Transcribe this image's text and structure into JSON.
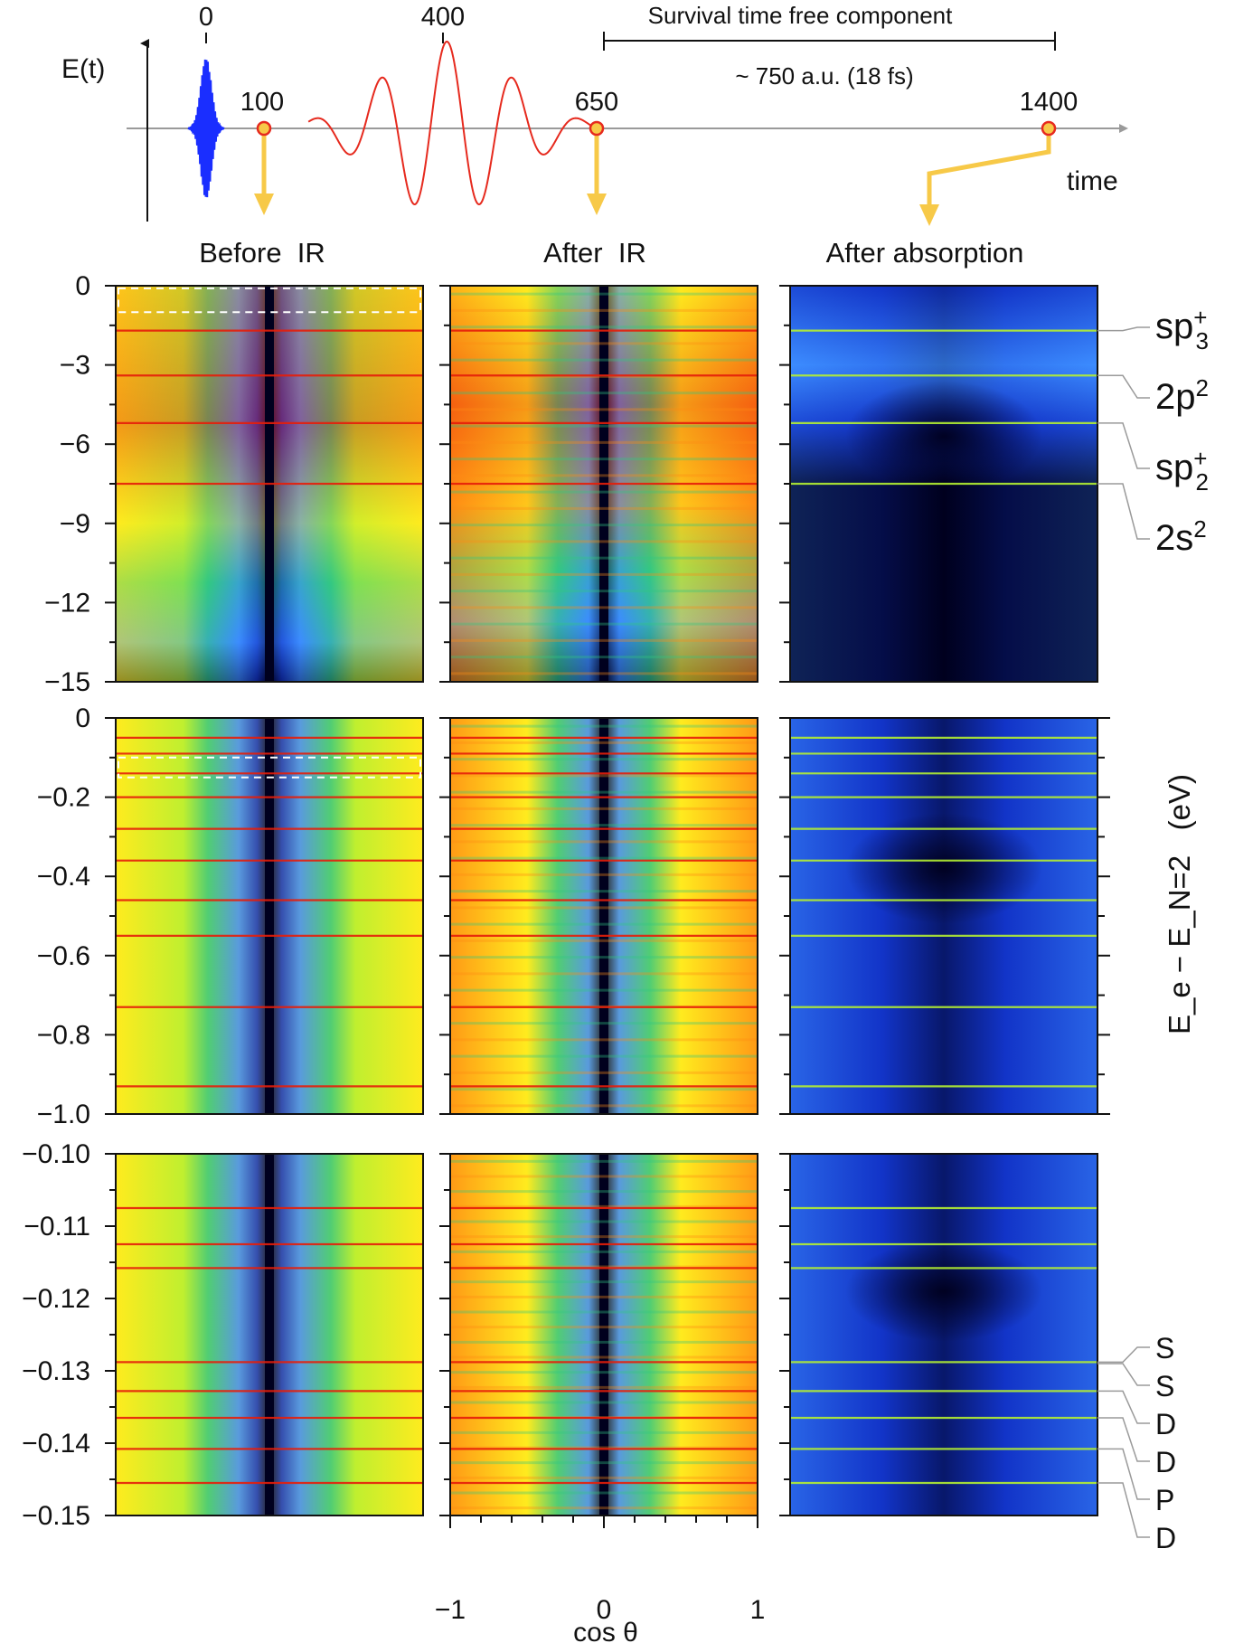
{
  "chart_data": {
    "type": "heatmap",
    "pulse_timeline": {
      "ylabel": "E(t)",
      "xlabel": "time",
      "time_markers": [
        {
          "label": "0",
          "t": 0
        },
        {
          "label": "100",
          "t": 100
        },
        {
          "label": "400",
          "t": 400
        },
        {
          "label": "650",
          "t": 650
        },
        {
          "label": "1400",
          "t": 1400
        }
      ],
      "bracket_title": "Survival time free component",
      "bracket_value": "~ 750 a.u. (18 fs)",
      "bracket_range": [
        650,
        1400
      ]
    },
    "column_titles": [
      "Before  IR",
      "After  IR",
      "After absorption"
    ],
    "shared_xlabel": "cos θ",
    "x_ticks": [
      "−1",
      "0",
      "1"
    ],
    "xlim": [
      -1,
      1
    ],
    "shared_ylabel": "E_e − E_N=2   (eV)",
    "rows": [
      {
        "ylim": [
          -15,
          0
        ],
        "y_ticks": [
          "0",
          "−3",
          "−6",
          "−9",
          "−12",
          "−15"
        ],
        "resonances": [
          -1.7,
          -3.4,
          -5.2,
          -7.5
        ],
        "state_labels": [
          {
            "base": "sp",
            "sub": "3",
            "sup": "+",
            "energy": -1.7
          },
          {
            "base": "2p",
            "sub": "",
            "sup": "2",
            "energy": -3.4
          },
          {
            "base": "sp",
            "sub": "2",
            "sup": "+",
            "energy": -5.2
          },
          {
            "base": "2s",
            "sub": "",
            "sup": "2",
            "energy": -7.5
          }
        ]
      },
      {
        "ylim": [
          -1.0,
          0
        ],
        "y_ticks": [
          "0",
          "−0.2",
          "−0.4",
          "−0.6",
          "−0.8",
          "−1.0"
        ],
        "resonances": [
          -0.05,
          -0.09,
          -0.14,
          -0.2,
          -0.28,
          -0.36,
          -0.46,
          -0.55,
          -0.73,
          -0.93
        ],
        "state_labels": []
      },
      {
        "ylim": [
          -0.15,
          -0.1
        ],
        "y_ticks": [
          "−0.10",
          "−0.11",
          "−0.12",
          "−0.13",
          "−0.14",
          "−0.15"
        ],
        "resonances": [
          -0.1075,
          -0.1125,
          -0.1158,
          -0.1288,
          -0.1328,
          -0.1365,
          -0.1408,
          -0.1455
        ],
        "state_labels": [
          {
            "base": "S",
            "sub": "",
            "sup": "",
            "energy": -0.1288
          },
          {
            "base": "S",
            "sub": "",
            "sup": "",
            "energy": -0.129
          },
          {
            "base": "D",
            "sub": "",
            "sup": "",
            "energy": -0.1328
          },
          {
            "base": "D",
            "sub": "",
            "sup": "",
            "energy": -0.1365
          },
          {
            "base": "P",
            "sub": "",
            "sup": "",
            "energy": -0.1408
          },
          {
            "base": "D",
            "sub": "",
            "sup": "",
            "energy": -0.1455
          }
        ]
      }
    ],
    "colormap": [
      "#00001e",
      "#1234c8",
      "#3c8cff",
      "#32c882",
      "#b4f032",
      "#ffeb1e",
      "#ff8c14",
      "#e61e0a"
    ]
  }
}
